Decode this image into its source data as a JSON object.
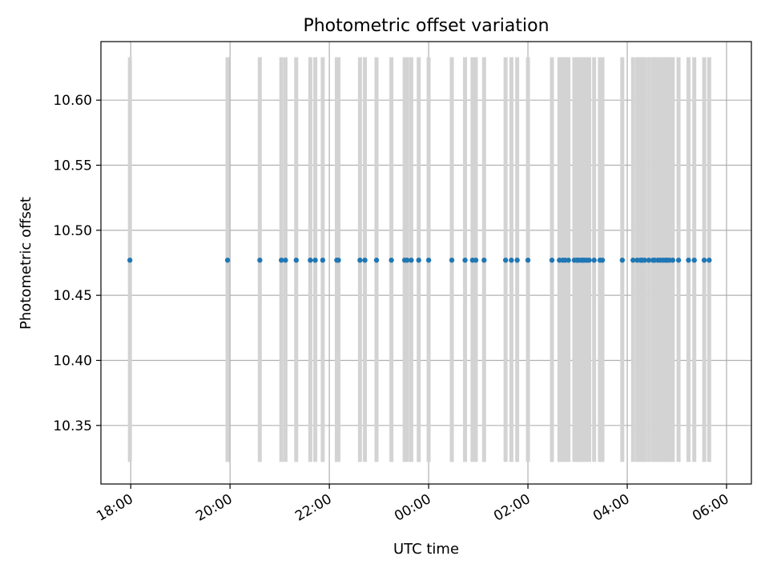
{
  "chart_data": {
    "type": "scatter",
    "title": "Photometric offset variation",
    "xlabel": "UTC time",
    "ylabel": "Photometric offset",
    "x_axis_kind": "time",
    "xlim": [
      "17:24",
      "06:30"
    ],
    "ylim": [
      10.305,
      10.645
    ],
    "y_ticks": [
      10.35,
      10.4,
      10.45,
      10.5,
      10.55,
      10.6
    ],
    "y_tick_labels": [
      "10.35",
      "10.40",
      "10.45",
      "10.50",
      "10.55",
      "10.60"
    ],
    "x_ticks": [
      "18:00",
      "20:00",
      "22:00",
      "00:00",
      "02:00",
      "04:00",
      "06:00"
    ],
    "x_tick_labels": [
      "18:00",
      "20:00",
      "22:00",
      "00:00",
      "02:00",
      "04:00",
      "06:00"
    ],
    "grid": true,
    "colors": {
      "points": "#1f77b4",
      "error_bars": "#d3d3d3",
      "grid": "#b0b0b0"
    },
    "error_bar_range": [
      10.322,
      10.633
    ],
    "series": [
      {
        "x": [
          "17:59",
          "19:57",
          "20:36",
          "21:02",
          "21:07",
          "21:20",
          "21:37",
          "21:43",
          "21:52",
          "22:09",
          "22:11",
          "22:37",
          "22:43",
          "22:57",
          "23:15",
          "23:31",
          "23:34",
          "23:39",
          "23:48",
          "00:00",
          "00:28",
          "00:44",
          "00:53",
          "00:57",
          "01:07",
          "01:33",
          "01:40",
          "01:47",
          "02:00",
          "02:29",
          "02:38",
          "02:42",
          "02:45",
          "02:49",
          "02:56",
          "02:59",
          "03:01",
          "03:04",
          "03:06",
          "03:08",
          "03:11",
          "03:14",
          "03:20",
          "03:27",
          "03:30",
          "03:54",
          "04:07",
          "04:12",
          "04:16",
          "04:18",
          "04:21",
          "04:26",
          "04:31",
          "04:33",
          "04:37",
          "04:40",
          "04:43",
          "04:46",
          "04:48",
          "04:51",
          "04:55",
          "05:02",
          "05:14",
          "05:21",
          "05:33",
          "05:39"
        ],
        "y": [
          10.477,
          10.477,
          10.477,
          10.477,
          10.477,
          10.477,
          10.477,
          10.477,
          10.477,
          10.477,
          10.477,
          10.477,
          10.477,
          10.477,
          10.477,
          10.477,
          10.477,
          10.477,
          10.477,
          10.477,
          10.477,
          10.477,
          10.477,
          10.477,
          10.477,
          10.477,
          10.477,
          10.477,
          10.477,
          10.477,
          10.477,
          10.477,
          10.477,
          10.477,
          10.477,
          10.477,
          10.477,
          10.477,
          10.477,
          10.477,
          10.477,
          10.477,
          10.477,
          10.477,
          10.477,
          10.477,
          10.477,
          10.477,
          10.477,
          10.477,
          10.477,
          10.477,
          10.477,
          10.477,
          10.477,
          10.477,
          10.477,
          10.477,
          10.477,
          10.477,
          10.477,
          10.477,
          10.477,
          10.477,
          10.477,
          10.477
        ]
      }
    ]
  }
}
